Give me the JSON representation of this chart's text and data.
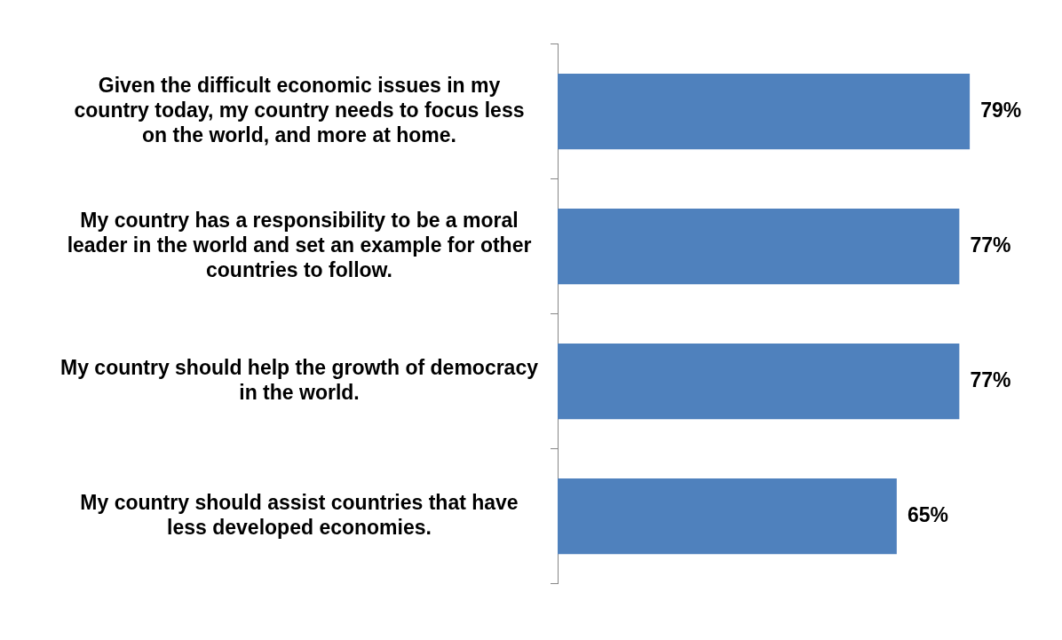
{
  "chart_data": {
    "type": "bar",
    "orientation": "horizontal",
    "categories": [
      "Given the difficult economic issues in my country today, my country needs to focus less on the world, and more at home.",
      "My country has a responsibility to be a moral leader in the world and set an example for other countries to follow.",
      "My country should help the growth of democracy in the world.",
      "My country should assist countries that have less developed economies."
    ],
    "values": [
      79,
      77,
      77,
      65
    ],
    "value_labels": [
      "79%",
      "77%",
      "77%",
      "65%"
    ],
    "color": "#4f81bd",
    "grid": false,
    "legend": false,
    "tick_labels": "y"
  }
}
